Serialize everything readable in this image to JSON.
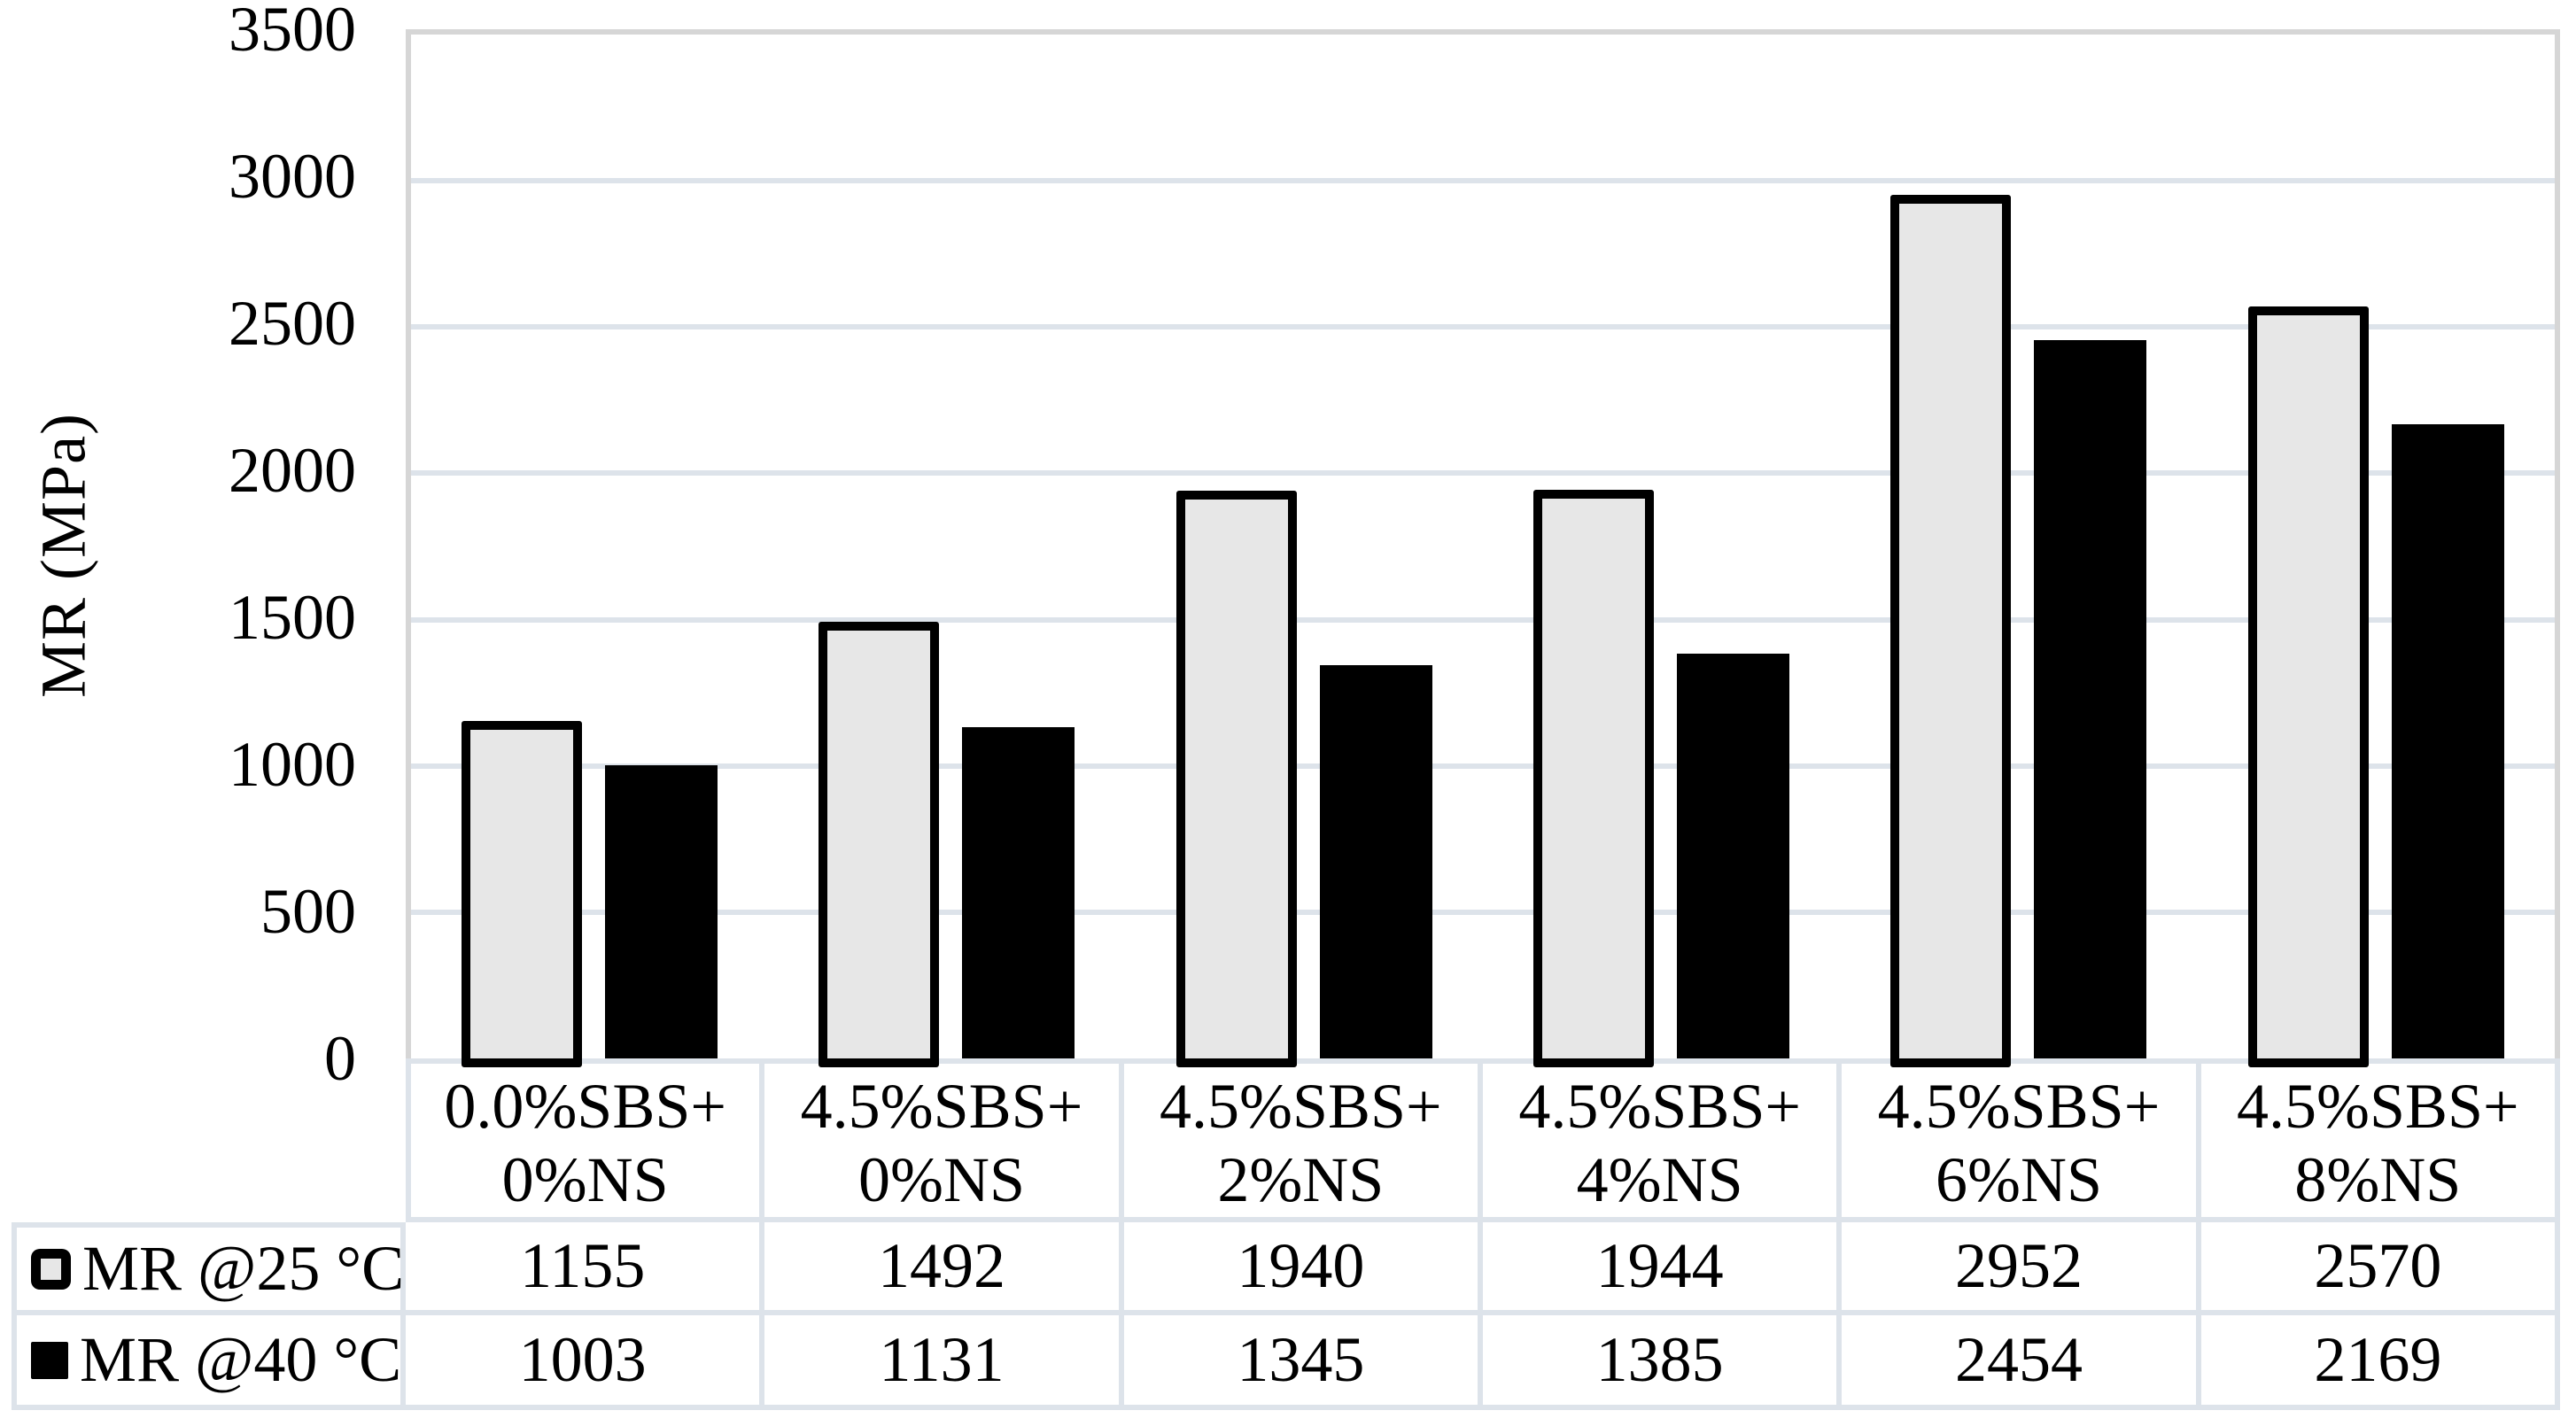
{
  "chart_data": {
    "type": "bar",
    "title": "",
    "xlabel": "",
    "ylabel": "MR (MPa)",
    "ylim": [
      0,
      3500
    ],
    "yticks": [
      0,
      500,
      1000,
      1500,
      2000,
      2500,
      3000,
      3500
    ],
    "grid": true,
    "legend_position": "data-table-left",
    "data_table": true,
    "categories": [
      "0.0%SBS+\n0%NS",
      "4.5%SBS+\n0%NS",
      "4.5%SBS+\n2%NS",
      "4.5%SBS+\n4%NS",
      "4.5%SBS+\n6%NS",
      "4.5%SBS+\n8%NS"
    ],
    "series": [
      {
        "name": "MR @25 °C",
        "values": [
          1155,
          1492,
          1940,
          1944,
          2952,
          2570
        ],
        "fill": "#e7e7e7",
        "border": "#000000",
        "legend_key": "outlined-square"
      },
      {
        "name": "MR @40 °C",
        "values": [
          1003,
          1131,
          1345,
          1385,
          2454,
          2169
        ],
        "fill": "#000000",
        "border": "#000000",
        "legend_key": "filled-square"
      }
    ]
  },
  "colors": {
    "background": "#ffffff",
    "text": "#000000",
    "gridline": "#dde3ea",
    "plot_frame": "#d6d6d6",
    "table_border": "#dde3ea",
    "bar_25c_fill": "#e7e7e7",
    "bar_40c_fill": "#000000",
    "bar_outline": "#000000"
  }
}
